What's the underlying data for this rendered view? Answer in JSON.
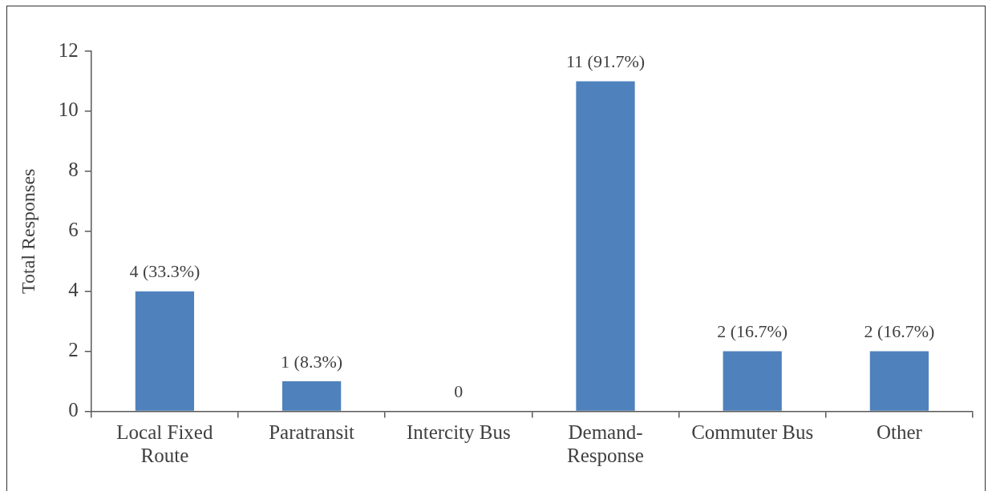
{
  "chart_data": {
    "type": "bar",
    "ylabel": "Total Responses",
    "categories": [
      "Local Fixed Route",
      "Paratransit",
      "Intercity Bus",
      "Demand-Response",
      "Commuter Bus",
      "Other"
    ],
    "values": [
      4,
      1,
      0,
      11,
      2,
      2
    ],
    "value_labels": [
      "4 (33.3%)",
      "1 (8.3%)",
      "0",
      "11 (91.7%)",
      "2 (16.7%)",
      "2 (16.7%)"
    ],
    "color": "#4f81bd",
    "ylim": [
      0,
      12
    ],
    "yticks": [
      0,
      2,
      4,
      6,
      8,
      10,
      12
    ]
  }
}
